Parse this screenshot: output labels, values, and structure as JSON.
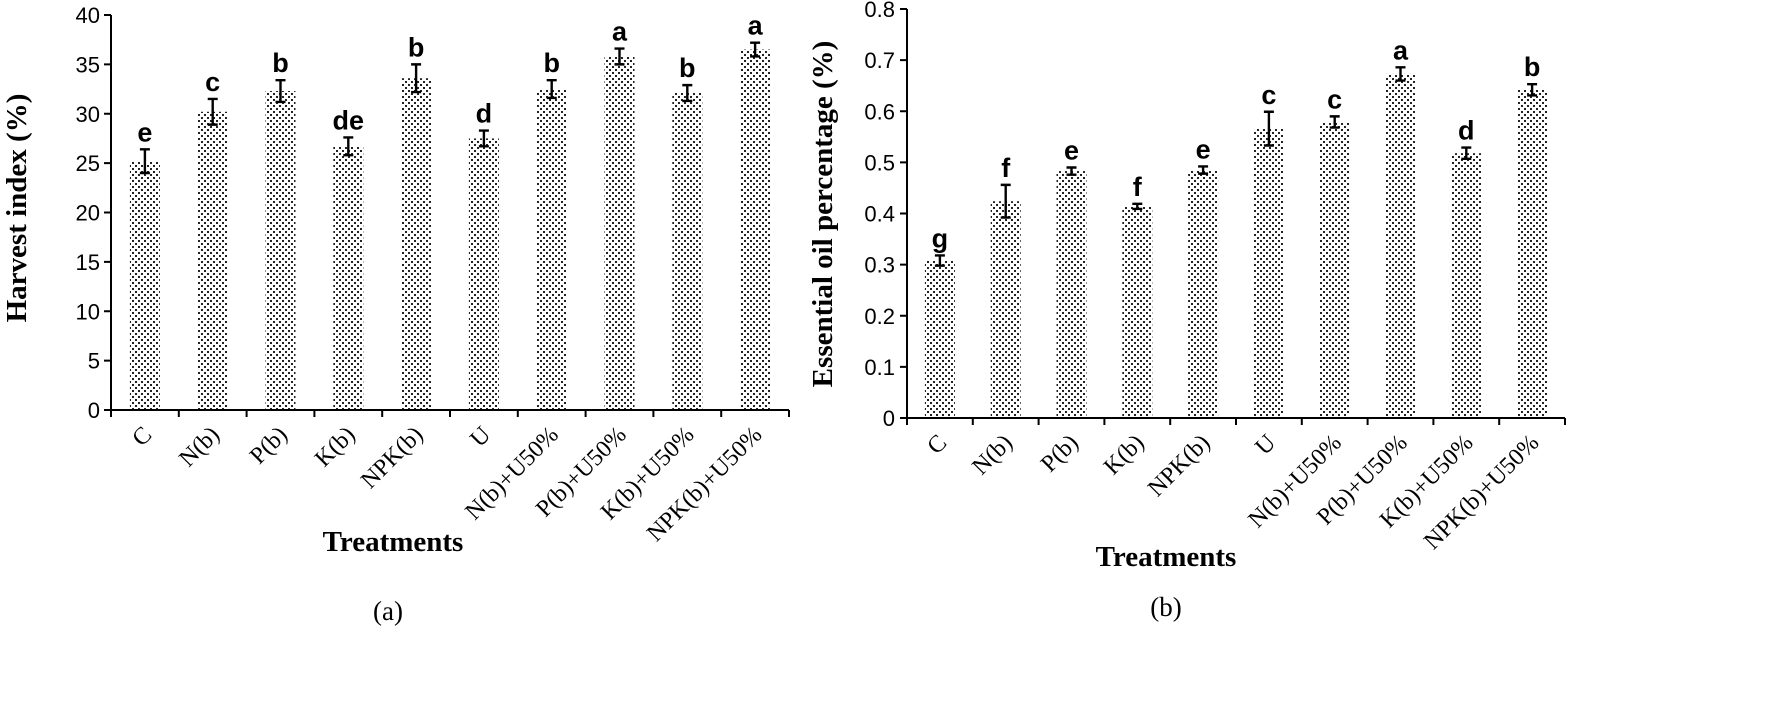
{
  "chart_data": [
    {
      "type": "bar",
      "panel_label": "(a)",
      "xlabel": "Treatments",
      "ylabel": "Harvest index (%)",
      "ylim": [
        0,
        40
      ],
      "yticks": [
        0,
        5,
        10,
        15,
        20,
        25,
        30,
        35,
        40
      ],
      "grid": false,
      "categories": [
        "C",
        "N(b)",
        "P(b)",
        "K(b)",
        "NPK(b)",
        "U",
        "N(b)+U50%",
        "P(b)+U50%",
        "K(b)+U50%",
        "NPK(b)+U50%"
      ],
      "values": [
        25.2,
        30.2,
        32.3,
        26.7,
        33.6,
        27.5,
        32.5,
        35.8,
        32.1,
        36.5
      ],
      "errors": [
        1.2,
        1.3,
        1.1,
        0.9,
        1.4,
        0.8,
        0.9,
        0.8,
        0.8,
        0.7
      ],
      "letters": [
        "e",
        "c",
        "b",
        "de",
        "b",
        "d",
        "b",
        "a",
        "b",
        "a"
      ]
    },
    {
      "type": "bar",
      "panel_label": "(b)",
      "xlabel": "Treatments",
      "ylabel": "Essential oil percentage (%)",
      "ylim": [
        0,
        0.8
      ],
      "yticks": [
        "0",
        "0.1",
        "0.2",
        "0.3",
        "0.4",
        "0.5",
        "0.6",
        "0.7",
        "0.8"
      ],
      "grid": false,
      "categories": [
        "C",
        "N(b)",
        "P(b)",
        "K(b)",
        "NPK(b)",
        "U",
        "N(b)+U50%",
        "P(b)+U50%",
        "K(b)+U50%",
        "NPK(b)+U50%"
      ],
      "values": [
        0.308,
        0.424,
        0.483,
        0.414,
        0.485,
        0.566,
        0.579,
        0.673,
        0.518,
        0.642
      ],
      "errors": [
        0.01,
        0.032,
        0.007,
        0.005,
        0.007,
        0.033,
        0.011,
        0.013,
        0.011,
        0.011
      ],
      "letters": [
        "g",
        "f",
        "e",
        "f",
        "e",
        "c",
        "c",
        "a",
        "d",
        "b"
      ]
    }
  ]
}
